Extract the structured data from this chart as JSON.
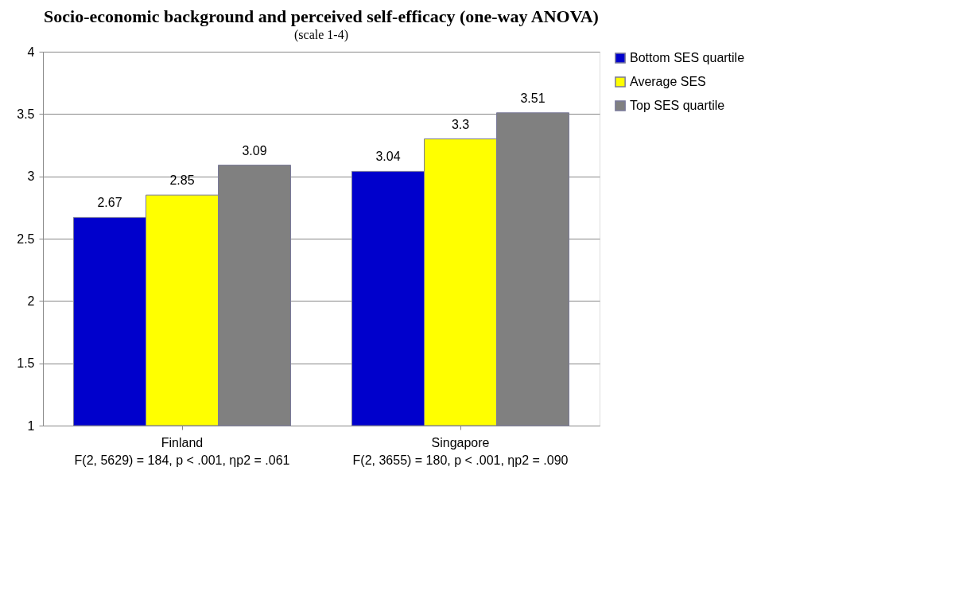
{
  "chart_data": {
    "type": "bar",
    "title": "Socio-economic background and perceived self-efficacy (one-way ANOVA)",
    "subtitle": "(scale 1-4)",
    "categories": [
      "Finland",
      "Singapore"
    ],
    "series": [
      {
        "name": "Bottom SES quartile",
        "color": "#0000cc",
        "values": [
          2.67,
          3.04
        ]
      },
      {
        "name": "Average SES",
        "color": "#ffff00",
        "values": [
          2.85,
          3.3
        ]
      },
      {
        "name": "Top SES quartile",
        "color": "#808080",
        "values": [
          3.09,
          3.51
        ]
      }
    ],
    "ylim": [
      1,
      4
    ],
    "yticks": [
      1,
      1.5,
      2,
      2.5,
      3,
      3.5,
      4
    ],
    "grid": "y",
    "legend": "right",
    "data_labels": true,
    "annotations": [
      "F(2, 5629) = 184, p < .001, ηp2 = .061",
      "F(2, 3655) = 180, p < .001, ηp2 = .090"
    ]
  }
}
